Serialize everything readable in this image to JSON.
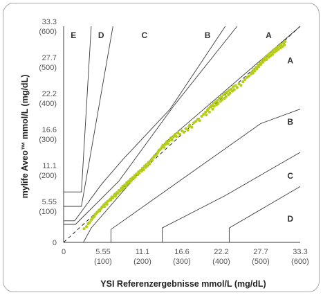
{
  "chart_data": {
    "type": "scatter",
    "xlabel": "YSI Referenzergebnisse mmol/L (mg/dL)",
    "ylabel": "mylife Aveo™ mmol/L (mg/dL)",
    "xlim": [
      0,
      600
    ],
    "ylim": [
      0,
      600
    ],
    "x_ticks": [
      {
        "value": 0,
        "mmol": "0",
        "mgdl": ""
      },
      {
        "value": 100,
        "mmol": "5.55",
        "mgdl": "(100)"
      },
      {
        "value": 200,
        "mmol": "11.1",
        "mgdl": "(200)"
      },
      {
        "value": 300,
        "mmol": "16.6",
        "mgdl": "(300)"
      },
      {
        "value": 400,
        "mmol": "22.2",
        "mgdl": "(400)"
      },
      {
        "value": 500,
        "mmol": "27.7",
        "mgdl": "(500)"
      },
      {
        "value": 600,
        "mmol": "33.3",
        "mgdl": "(600)"
      }
    ],
    "y_ticks": [
      {
        "value": 0,
        "mmol": "0",
        "mgdl": ""
      },
      {
        "value": 100,
        "mmol": "5.55",
        "mgdl": "(100)"
      },
      {
        "value": 200,
        "mmol": "11.1",
        "mgdl": "(200)"
      },
      {
        "value": 300,
        "mmol": "16.6",
        "mgdl": "(300)"
      },
      {
        "value": 400,
        "mmol": "22.2",
        "mgdl": "(400)"
      },
      {
        "value": 500,
        "mmol": "27.7",
        "mgdl": "(500)"
      },
      {
        "value": 600,
        "mmol": "33.3",
        "mgdl": "(600)"
      }
    ],
    "zone_labels": [
      {
        "text": "E",
        "x": 25,
        "y": 575
      },
      {
        "text": "D",
        "x": 95,
        "y": 575
      },
      {
        "text": "C",
        "x": 205,
        "y": 575
      },
      {
        "text": "B",
        "x": 365,
        "y": 575
      },
      {
        "text": "A",
        "x": 520,
        "y": 575
      },
      {
        "text": "A",
        "x": 575,
        "y": 505
      },
      {
        "text": "B",
        "x": 575,
        "y": 335
      },
      {
        "text": "C",
        "x": 575,
        "y": 185
      },
      {
        "text": "D",
        "x": 575,
        "y": 65
      }
    ],
    "zone_boundaries": [
      [
        [
          0,
          140
        ],
        [
          45,
          140
        ],
        [
          70,
          600
        ]
      ],
      [
        [
          0,
          100
        ],
        [
          45,
          100
        ],
        [
          125,
          600
        ]
      ],
      [
        [
          0,
          60
        ],
        [
          28,
          60
        ],
        [
          95,
          160
        ],
        [
          150,
          230
        ],
        [
          270,
          370
        ],
        [
          410,
          600
        ]
      ],
      [
        [
          0,
          50
        ],
        [
          30,
          50
        ],
        [
          140,
          170
        ],
        [
          280,
          380
        ],
        [
          440,
          600
        ]
      ],
      [
        [
          50,
          0
        ],
        [
          70,
          40
        ],
        [
          260,
          280
        ],
        [
          600,
          600
        ]
      ],
      [
        [
          120,
          0
        ],
        [
          120,
          36
        ],
        [
          500,
          330
        ],
        [
          600,
          370
        ]
      ],
      [
        [
          250,
          0
        ],
        [
          250,
          40
        ],
        [
          410,
          130
        ],
        [
          600,
          250
        ]
      ],
      [
        [
          420,
          0
        ],
        [
          420,
          40
        ],
        [
          600,
          155
        ]
      ]
    ],
    "identity_line": [
      [
        0,
        0
      ],
      [
        600,
        600
      ]
    ],
    "point_color": "#b5cc18",
    "line_color": "#3a3a3a",
    "series": [
      {
        "values": [
          [
            52,
            38
          ],
          [
            58,
            44
          ],
          [
            62,
            52
          ],
          [
            66,
            55
          ],
          [
            70,
            62
          ],
          [
            72,
            66
          ],
          [
            75,
            70
          ],
          [
            78,
            72
          ],
          [
            80,
            78
          ],
          [
            83,
            80
          ],
          [
            85,
            84
          ],
          [
            88,
            86
          ],
          [
            90,
            90
          ],
          [
            92,
            88
          ],
          [
            95,
            94
          ],
          [
            97,
            98
          ],
          [
            100,
            100
          ],
          [
            102,
            104
          ],
          [
            104,
            100
          ],
          [
            106,
            108
          ],
          [
            108,
            110
          ],
          [
            110,
            106
          ],
          [
            112,
            114
          ],
          [
            115,
            116
          ],
          [
            118,
            120
          ],
          [
            120,
            118
          ],
          [
            122,
            126
          ],
          [
            125,
            124
          ],
          [
            128,
            130
          ],
          [
            130,
            134
          ],
          [
            132,
            128
          ],
          [
            135,
            138
          ],
          [
            138,
            136
          ],
          [
            140,
            144
          ],
          [
            143,
            142
          ],
          [
            146,
            150
          ],
          [
            148,
            146
          ],
          [
            150,
            156
          ],
          [
            152,
            150
          ],
          [
            155,
            160
          ],
          [
            158,
            156
          ],
          [
            160,
            166
          ],
          [
            162,
            162
          ],
          [
            165,
            170
          ],
          [
            168,
            166
          ],
          [
            170,
            176
          ],
          [
            172,
            172
          ],
          [
            175,
            180
          ],
          [
            178,
            178
          ],
          [
            180,
            186
          ],
          [
            182,
            182
          ],
          [
            185,
            190
          ],
          [
            188,
            188
          ],
          [
            190,
            196
          ],
          [
            192,
            192
          ],
          [
            195,
            200
          ],
          [
            198,
            198
          ],
          [
            200,
            206
          ],
          [
            203,
            202
          ],
          [
            205,
            212
          ],
          [
            208,
            208
          ],
          [
            210,
            216
          ],
          [
            212,
            212
          ],
          [
            215,
            222
          ],
          [
            218,
            218
          ],
          [
            220,
            226
          ],
          [
            223,
            230
          ],
          [
            225,
            228
          ],
          [
            228,
            236
          ],
          [
            230,
            240
          ],
          [
            235,
            242
          ],
          [
            238,
            248
          ],
          [
            240,
            252
          ],
          [
            242,
            256
          ],
          [
            245,
            258
          ],
          [
            248,
            262
          ],
          [
            250,
            266
          ],
          [
            252,
            270
          ],
          [
            255,
            264
          ],
          [
            258,
            272
          ],
          [
            260,
            276
          ],
          [
            262,
            280
          ],
          [
            265,
            274
          ],
          [
            268,
            282
          ],
          [
            270,
            286
          ],
          [
            272,
            290
          ],
          [
            275,
            284
          ],
          [
            278,
            292
          ],
          [
            280,
            296
          ],
          [
            283,
            300
          ],
          [
            286,
            294
          ],
          [
            290,
            304
          ],
          [
            295,
            300
          ],
          [
            300,
            310
          ],
          [
            305,
            306
          ],
          [
            310,
            316
          ],
          [
            315,
            312
          ],
          [
            318,
            322
          ],
          [
            320,
            326
          ],
          [
            325,
            320
          ],
          [
            330,
            332
          ],
          [
            335,
            336
          ],
          [
            340,
            342
          ],
          [
            345,
            338
          ],
          [
            350,
            350
          ],
          [
            355,
            356
          ],
          [
            360,
            362
          ],
          [
            362,
            354
          ],
          [
            365,
            368
          ],
          [
            368,
            372
          ],
          [
            370,
            362
          ],
          [
            372,
            376
          ],
          [
            375,
            380
          ],
          [
            378,
            370
          ],
          [
            380,
            386
          ],
          [
            382,
            378
          ],
          [
            385,
            390
          ],
          [
            388,
            382
          ],
          [
            390,
            394
          ],
          [
            392,
            386
          ],
          [
            395,
            400
          ],
          [
            398,
            392
          ],
          [
            400,
            404
          ],
          [
            402,
            396
          ],
          [
            405,
            410
          ],
          [
            408,
            400
          ],
          [
            410,
            414
          ],
          [
            412,
            404
          ],
          [
            415,
            418
          ],
          [
            418,
            410
          ],
          [
            420,
            422
          ],
          [
            422,
            414
          ],
          [
            425,
            426
          ],
          [
            428,
            420
          ],
          [
            430,
            432
          ],
          [
            433,
            424
          ],
          [
            436,
            436
          ],
          [
            440,
            430
          ],
          [
            445,
            440
          ],
          [
            450,
            436
          ],
          [
            455,
            446
          ],
          [
            460,
            452
          ],
          [
            465,
            458
          ],
          [
            470,
            462
          ],
          [
            475,
            468
          ],
          [
            478,
            474
          ],
          [
            480,
            470
          ],
          [
            482,
            480
          ],
          [
            485,
            476
          ],
          [
            488,
            486
          ],
          [
            490,
            482
          ],
          [
            493,
            492
          ],
          [
            495,
            488
          ],
          [
            498,
            498
          ],
          [
            500,
            494
          ],
          [
            503,
            504
          ],
          [
            505,
            500
          ],
          [
            508,
            510
          ],
          [
            510,
            506
          ],
          [
            512,
            514
          ],
          [
            515,
            508
          ],
          [
            518,
            520
          ],
          [
            520,
            514
          ],
          [
            522,
            524
          ],
          [
            525,
            518
          ],
          [
            528,
            528
          ],
          [
            530,
            522
          ],
          [
            532,
            534
          ],
          [
            535,
            528
          ],
          [
            538,
            538
          ],
          [
            540,
            532
          ],
          [
            542,
            542
          ],
          [
            545,
            536
          ],
          [
            548,
            546
          ],
          [
            550,
            540
          ],
          [
            552,
            550
          ],
          [
            555,
            544
          ],
          [
            558,
            554
          ],
          [
            560,
            548
          ],
          [
            562,
            558
          ]
        ]
      }
    ]
  }
}
